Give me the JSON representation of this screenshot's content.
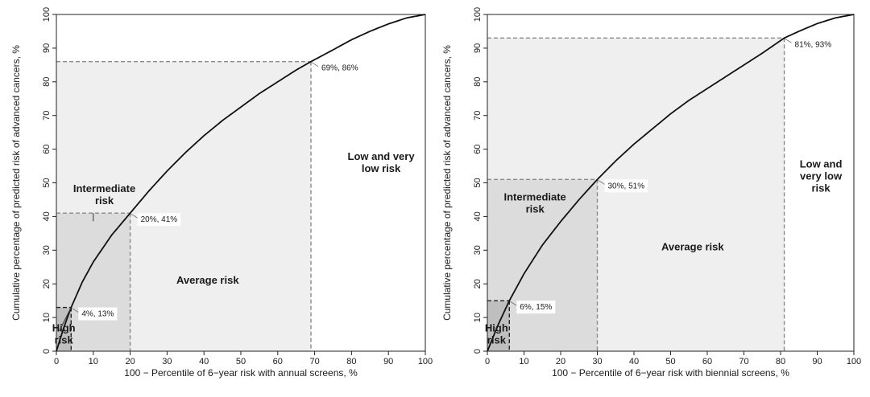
{
  "chart_data": [
    {
      "type": "area",
      "xlabel": "100 − Percentile of 6−year risk with annual screens, %",
      "ylabel": "Cumulative percentage of predicted risk of advanced cancers, %",
      "xlim": [
        0,
        100
      ],
      "ylim": [
        0,
        100
      ],
      "xticks": [
        "0",
        "10",
        "20",
        "30",
        "40",
        "50",
        "60",
        "70",
        "80",
        "90",
        "100"
      ],
      "yticks": [
        "0",
        "10",
        "20",
        "30",
        "40",
        "50",
        "60",
        "70",
        "80",
        "90",
        "100"
      ],
      "grid": false,
      "curve": {
        "x": [
          0,
          2,
          4,
          7,
          10,
          15,
          20,
          25,
          30,
          35,
          40,
          45,
          50,
          55,
          60,
          65,
          69,
          75,
          80,
          85,
          90,
          95,
          100
        ],
        "y": [
          0,
          7,
          13,
          20.5,
          26.5,
          34.5,
          41,
          47.5,
          53.5,
          59,
          64,
          68.5,
          72.5,
          76.5,
          80,
          83.5,
          86,
          89.5,
          92.5,
          95,
          97.2,
          99,
          100
        ]
      },
      "regions": [
        {
          "label": "High\nrisk",
          "x_range": [
            0,
            4
          ],
          "shade": "#bfbfbf"
        },
        {
          "label": "Intermediate\nrisk",
          "x_range": [
            4,
            20
          ],
          "shade": "#dcdcdc"
        },
        {
          "label": "Average risk",
          "x_range": [
            20,
            69
          ],
          "shade": "#efefef"
        },
        {
          "label": "Low and very\nlow risk",
          "x_range": [
            69,
            100
          ],
          "shade": "#ffffff"
        }
      ],
      "points": [
        {
          "x": 4,
          "y": 13,
          "label": "4%, 13%"
        },
        {
          "x": 20,
          "y": 41,
          "label": "20%, 41%"
        },
        {
          "x": 69,
          "y": 86,
          "label": "69%, 86%"
        }
      ]
    },
    {
      "type": "area",
      "xlabel": "100 − Percentile of 6−year risk with biennial screens, %",
      "ylabel": "Cumulative percentage of predicted risk of advanced cancers, %",
      "xlim": [
        0,
        100
      ],
      "ylim": [
        0,
        100
      ],
      "xticks": [
        "0",
        "10",
        "20",
        "30",
        "40",
        "50",
        "60",
        "70",
        "80",
        "90",
        "100"
      ],
      "yticks": [
        "0",
        "10",
        "20",
        "30",
        "40",
        "50",
        "60",
        "70",
        "80",
        "90",
        "100"
      ],
      "grid": false,
      "curve": {
        "x": [
          0,
          3,
          6,
          10,
          15,
          20,
          25,
          30,
          35,
          40,
          45,
          50,
          55,
          60,
          65,
          70,
          75,
          81,
          85,
          90,
          95,
          100
        ],
        "y": [
          0,
          8,
          15,
          23,
          31.5,
          38.5,
          45,
          51,
          56.5,
          61.5,
          66,
          70.5,
          74.5,
          78,
          81.5,
          85,
          88.5,
          93,
          95,
          97.3,
          99,
          100
        ]
      },
      "regions": [
        {
          "label": "High\nrisk",
          "x_range": [
            0,
            6
          ],
          "shade": "#bfbfbf"
        },
        {
          "label": "Intermediate\nrisk",
          "x_range": [
            6,
            30
          ],
          "shade": "#dcdcdc"
        },
        {
          "label": "Average risk",
          "x_range": [
            30,
            81
          ],
          "shade": "#efefef"
        },
        {
          "label": "Low and\nvery low\nrisk",
          "x_range": [
            81,
            100
          ],
          "shade": "#ffffff"
        }
      ],
      "points": [
        {
          "x": 6,
          "y": 15,
          "label": "6%, 15%"
        },
        {
          "x": 30,
          "y": 51,
          "label": "30%, 51%"
        },
        {
          "x": 81,
          "y": 93,
          "label": "81%, 93%"
        }
      ]
    }
  ]
}
